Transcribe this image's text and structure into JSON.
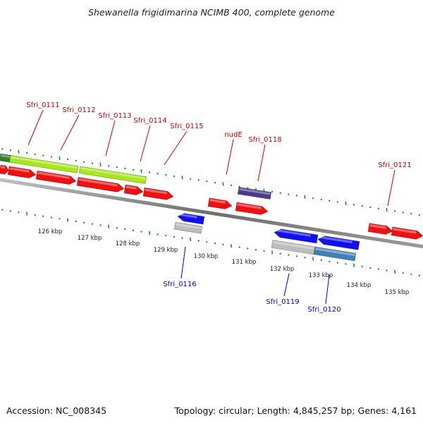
{
  "title": "Shewanella frigidimarina NCIMB 400, complete genome",
  "footer": {
    "accession": "Accession: NC_008345",
    "topology": "Topology: circular; Length: 4,845,257 bp; Genes: 4,161"
  },
  "colors": {
    "forward_gene": "#ee1111",
    "reverse_gene": "#1111ee",
    "light_green": "#a8e61e",
    "purple": "#4b3a8c",
    "grey": "#bdbdbd",
    "steel_blue": "#3f7fb5",
    "dark_green": "#2d7d2d",
    "tick_green": "#228b22",
    "forward_label": "#cc0000",
    "reverse_label": "#0000cc"
  },
  "scale_labels": [
    "126 kbp",
    "127 kbp",
    "128 kbp",
    "129 kbp",
    "130 kbp",
    "131 kbp",
    "132 kbp",
    "133 kbp",
    "134 kbp",
    "135 kbp"
  ],
  "gene_labels_top": [
    "Sfri_0111",
    "Sfri_0112",
    "Sfri_0113",
    "Sfri_0114",
    "Sfri_0115",
    "nudE",
    "Sfri_0118",
    "Sfri_0121"
  ],
  "gene_labels_bottom": [
    "Sfri_0116",
    "Sfri_0119",
    "Sfri_0120"
  ]
}
